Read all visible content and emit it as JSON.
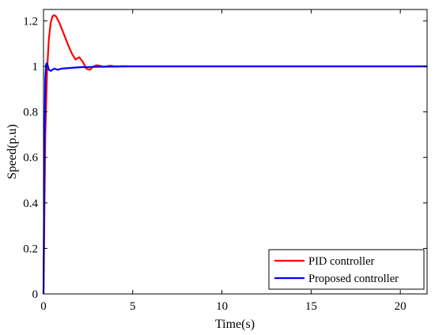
{
  "chart_data": {
    "type": "line",
    "title": "",
    "xlabel": "Time(s)",
    "ylabel": "Speed(p.u)",
    "xlim": [
      0,
      21.5
    ],
    "ylim": [
      0,
      1.25
    ],
    "xticks": [
      0,
      5,
      10,
      15,
      20
    ],
    "xtick_labels": [
      "0",
      "5",
      "10",
      "15",
      "20"
    ],
    "yticks": [
      0,
      0.2,
      0.4,
      0.6,
      0.8,
      1.0,
      1.2
    ],
    "ytick_labels": [
      "0",
      "0.2",
      "0.4",
      "0.6",
      "0.8",
      "1",
      "1.2"
    ],
    "grid": false,
    "legend_position": "bottom-right",
    "series": [
      {
        "name": "PID controller",
        "color": "#ff0000",
        "x": [
          0,
          0.05,
          0.1,
          0.2,
          0.3,
          0.4,
          0.5,
          0.6,
          0.7,
          0.8,
          0.9,
          1.0,
          1.2,
          1.4,
          1.6,
          1.8,
          2.0,
          2.2,
          2.4,
          2.6,
          2.8,
          3.0,
          3.2,
          3.4,
          3.7,
          4.0,
          4.5,
          5.0,
          6.0,
          21.5
        ],
        "y": [
          0,
          0.35,
          0.7,
          0.98,
          1.12,
          1.19,
          1.22,
          1.225,
          1.22,
          1.205,
          1.19,
          1.17,
          1.13,
          1.09,
          1.055,
          1.03,
          1.04,
          1.02,
          0.99,
          0.985,
          1.0,
          1.005,
          1.002,
          0.998,
          1.003,
          1.0,
          1.001,
          1.0,
          1.0,
          1.0
        ]
      },
      {
        "name": "Proposed controller",
        "color": "#0000ff",
        "x": [
          0,
          0.05,
          0.1,
          0.15,
          0.2,
          0.25,
          0.3,
          0.4,
          0.5,
          0.6,
          0.8,
          1.0,
          1.5,
          2.0,
          3.0,
          4.0,
          5.0,
          21.5
        ],
        "y": [
          0,
          0.6,
          0.95,
          1.01,
          1.015,
          1.0,
          0.985,
          0.98,
          0.985,
          0.99,
          0.985,
          0.99,
          0.993,
          0.996,
          0.998,
          0.999,
          1.0,
          1.0
        ]
      }
    ]
  }
}
